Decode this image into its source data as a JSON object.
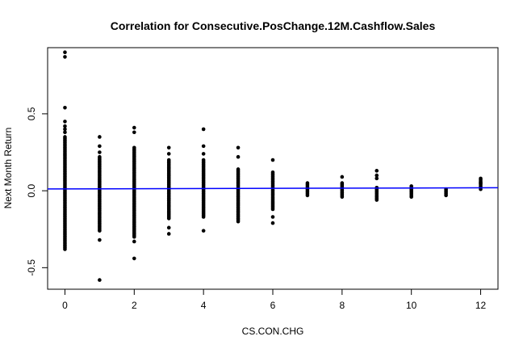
{
  "chart_data": {
    "type": "scatter",
    "title": "Correlation for Consecutive.PosChange.12M.Cashflow.Sales",
    "xlabel": "CS.CON.CHG",
    "ylabel": "Next Month Return",
    "xlim": [
      -0.5,
      12.5
    ],
    "ylim": [
      -0.64,
      0.93
    ],
    "x_ticks": [
      0,
      2,
      4,
      6,
      8,
      10,
      12
    ],
    "x_tick_labels": [
      "0",
      "2",
      "4",
      "6",
      "8",
      "10",
      "12"
    ],
    "y_ticks": [
      -0.5,
      0.0,
      0.5
    ],
    "y_tick_labels": [
      "-0.5",
      "0.0",
      "0.5"
    ],
    "grid": false,
    "legend": "none",
    "point_color": "#000000",
    "regression_line_color": "#0000ff",
    "regression_line": {
      "intercept": 0.012,
      "slope": 0.0006
    },
    "groups": [
      {
        "x": 0,
        "y_min": -0.38,
        "y_max": 0.35,
        "outliers": [
          0.9,
          0.87,
          0.54,
          0.45,
          0.42,
          0.4,
          0.38
        ]
      },
      {
        "x": 1,
        "y_min": -0.26,
        "y_max": 0.22,
        "outliers": [
          0.35,
          0.29,
          0.25,
          -0.32,
          -0.58
        ]
      },
      {
        "x": 2,
        "y_min": -0.3,
        "y_max": 0.28,
        "outliers": [
          0.41,
          0.38,
          -0.33,
          -0.44
        ]
      },
      {
        "x": 3,
        "y_min": -0.18,
        "y_max": 0.2,
        "outliers": [
          0.28,
          0.24,
          -0.24,
          -0.28
        ]
      },
      {
        "x": 4,
        "y_min": -0.17,
        "y_max": 0.2,
        "outliers": [
          0.4,
          0.29,
          0.24,
          -0.26
        ]
      },
      {
        "x": 5,
        "y_min": -0.2,
        "y_max": 0.14,
        "outliers": [
          0.28,
          0.22
        ]
      },
      {
        "x": 6,
        "y_min": -0.12,
        "y_max": 0.12,
        "outliers": [
          0.2,
          -0.17,
          -0.21
        ]
      },
      {
        "x": 7,
        "y_min": -0.03,
        "y_max": 0.05,
        "outliers": []
      },
      {
        "x": 8,
        "y_min": -0.04,
        "y_max": 0.05,
        "outliers": [
          0.09
        ]
      },
      {
        "x": 9,
        "y_min": -0.06,
        "y_max": 0.02,
        "outliers": [
          0.13,
          0.1,
          0.08
        ]
      },
      {
        "x": 10,
        "y_min": -0.04,
        "y_max": 0.03,
        "outliers": []
      },
      {
        "x": 11,
        "y_min": -0.03,
        "y_max": 0.01,
        "outliers": []
      },
      {
        "x": 12,
        "y_min": 0.01,
        "y_max": 0.08,
        "outliers": [
          0.05
        ]
      }
    ]
  }
}
